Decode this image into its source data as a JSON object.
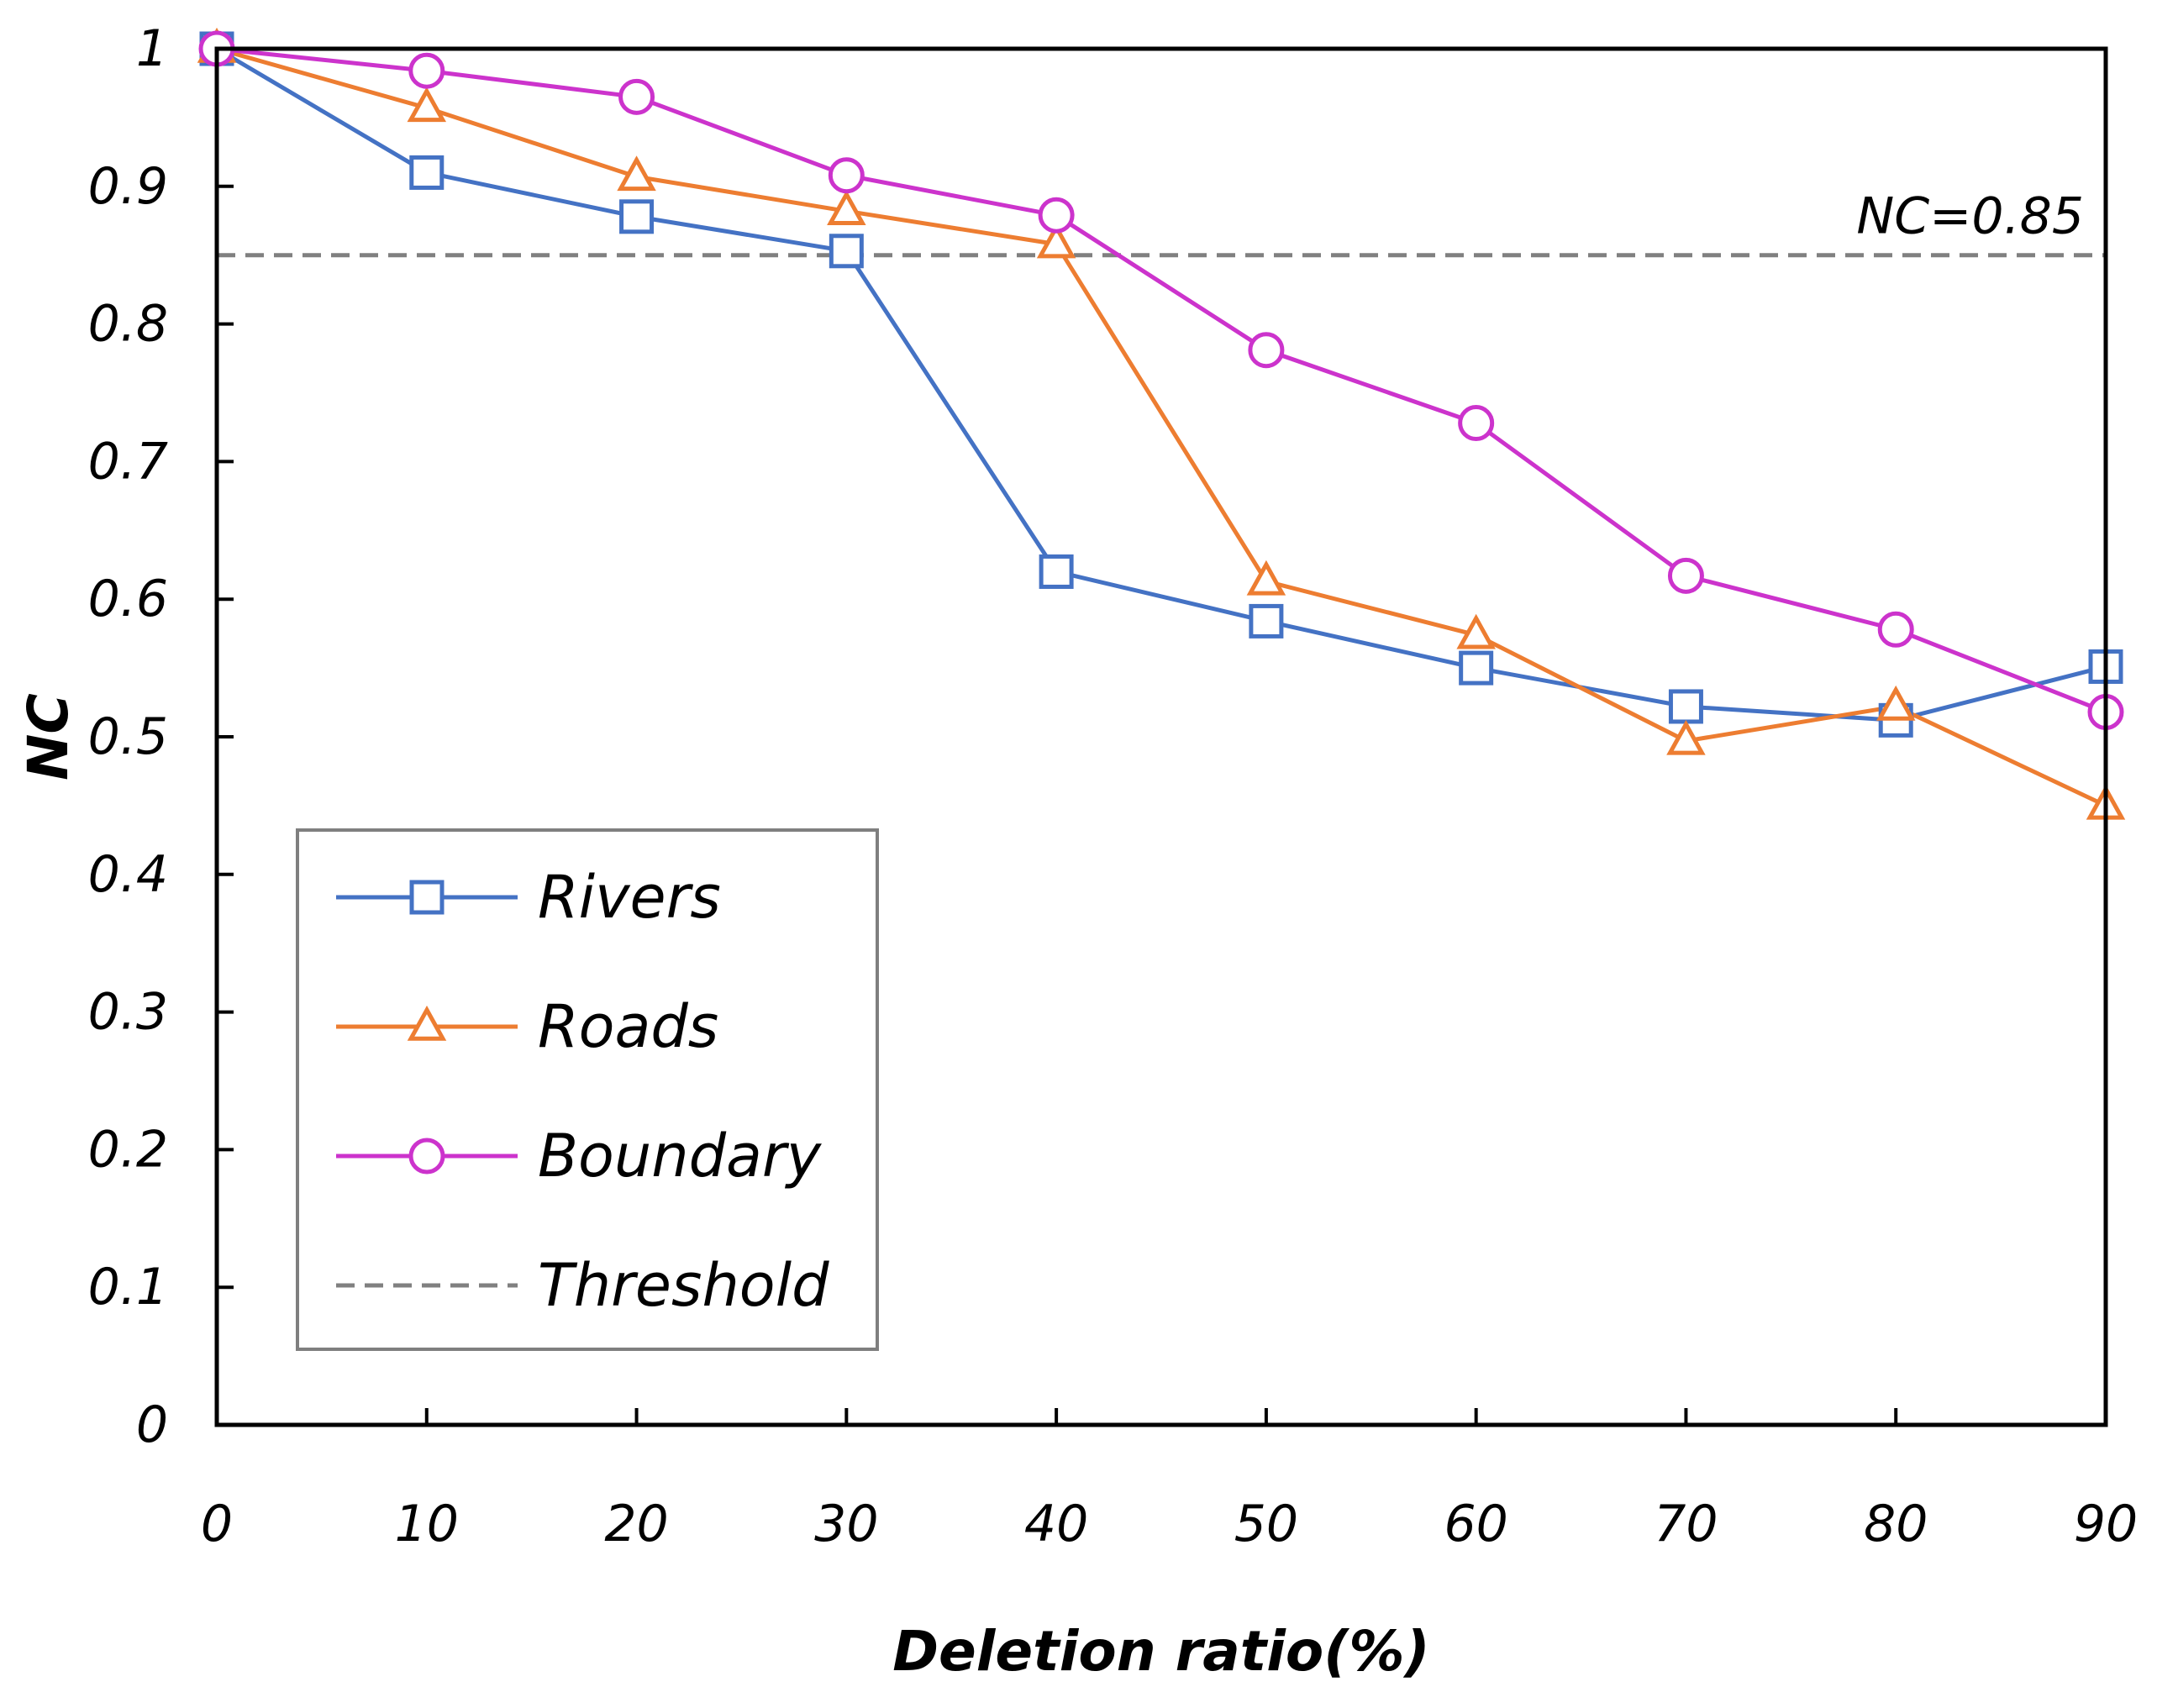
{
  "chart_data": {
    "type": "line",
    "title": "",
    "xlabel": "Deletion ratio(%)",
    "ylabel": "NC",
    "x": [
      0,
      10,
      20,
      30,
      40,
      50,
      60,
      70,
      80,
      90
    ],
    "x_tick_labels": [
      "0",
      "10",
      "20",
      "30",
      "40",
      "50",
      "60",
      "70",
      "80",
      "90"
    ],
    "y_tick_labels": [
      "0",
      "0.1",
      "0.2",
      "0.3",
      "0.4",
      "0.5",
      "0.6",
      "0.7",
      "0.8",
      "0.9",
      "1"
    ],
    "xlim": [
      0,
      90
    ],
    "ylim": [
      0,
      1
    ],
    "grid": false,
    "legend_position": "lower-left",
    "series": [
      {
        "name": "Rivers",
        "color": "#4472C4",
        "marker": "square",
        "values": [
          1.0,
          0.91,
          0.878,
          0.853,
          0.62,
          0.584,
          0.55,
          0.522,
          0.512,
          0.551
        ]
      },
      {
        "name": "Roads",
        "color": "#ED7D31",
        "marker": "triangle",
        "values": [
          1.0,
          0.957,
          0.907,
          0.882,
          0.858,
          0.613,
          0.574,
          0.497,
          0.522,
          0.45
        ]
      },
      {
        "name": "Boundary",
        "color": "#CC33CC",
        "marker": "circle",
        "values": [
          1.0,
          0.984,
          0.965,
          0.908,
          0.879,
          0.781,
          0.728,
          0.617,
          0.578,
          0.518
        ]
      }
    ],
    "threshold": {
      "name": "Threshold",
      "value": 0.85,
      "color": "#808080",
      "style": "dashed",
      "annotation": "NC=0.85"
    }
  }
}
